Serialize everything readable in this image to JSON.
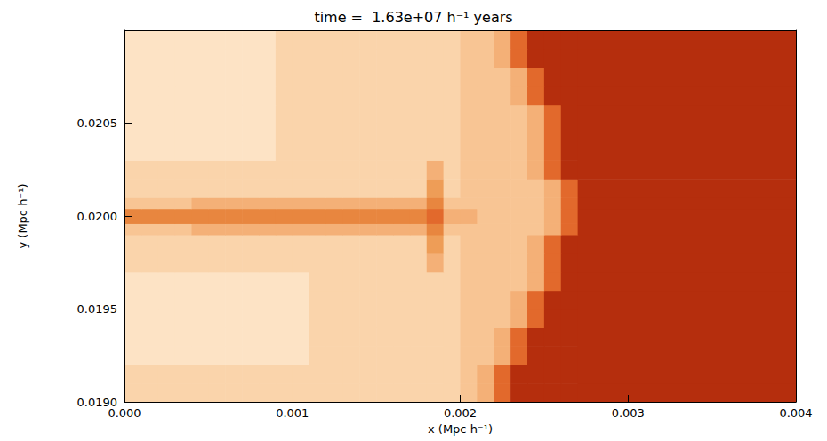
{
  "chart_data": {
    "type": "heatmap",
    "title": "time =  1.63e+07 h⁻¹ years",
    "x_label": "x (Mpc h⁻¹)",
    "y_label": "y (Mpc h⁻¹)",
    "xlim": [
      0,
      0.004
    ],
    "ylim": [
      0.019,
      0.021
    ],
    "xticks": [
      {
        "value": 0,
        "label": "0.000"
      },
      {
        "value": 0.001,
        "label": "0.001"
      },
      {
        "value": 0.002,
        "label": "0.002"
      },
      {
        "value": 0.003,
        "label": "0.003"
      },
      {
        "value": 0.004,
        "label": "0.004"
      }
    ],
    "yticks": [
      {
        "value": 0.019,
        "label": "0.0190"
      },
      {
        "value": 0.0195,
        "label": "0.0195"
      },
      {
        "value": 0.02,
        "label": "0.0200"
      },
      {
        "value": 0.0205,
        "label": "0.0205"
      }
    ],
    "grid": false,
    "value_range": [
      0,
      9
    ],
    "x_edges": [
      0,
      0.0001,
      0.0002,
      0.0003,
      0.0004,
      0.0005,
      0.0006,
      0.0007,
      0.0008,
      0.0009,
      0.001,
      0.0011,
      0.0012,
      0.0013,
      0.0014,
      0.0015,
      0.0016,
      0.0017,
      0.0018,
      0.0019,
      0.002,
      0.0021,
      0.0022,
      0.0023,
      0.0024,
      0.0025,
      0.0026,
      0.0027,
      0.004
    ],
    "y_edges": [
      0.019,
      0.0191,
      0.0192,
      0.0193,
      0.0194,
      0.0195,
      0.0196,
      0.0197,
      0.0198,
      0.0199,
      0.01996,
      0.02004,
      0.0201,
      0.0202,
      0.0203,
      0.0204,
      0.0205,
      0.0206,
      0.0207,
      0.0208,
      0.0209,
      0.021
    ],
    "cells": [
      [
        8,
        8,
        8,
        8,
        8,
        8,
        8,
        8,
        8,
        8,
        8,
        8,
        8,
        8,
        8,
        8,
        8,
        8,
        8,
        8,
        7,
        6,
        3,
        0,
        0,
        0,
        0,
        0
      ],
      [
        8,
        8,
        8,
        8,
        8,
        8,
        8,
        8,
        8,
        8,
        8,
        8,
        8,
        8,
        8,
        8,
        8,
        8,
        8,
        8,
        7,
        6,
        3,
        0,
        0,
        0,
        0,
        0
      ],
      [
        9,
        9,
        9,
        9,
        9,
        9,
        9,
        9,
        9,
        9,
        9,
        8,
        8,
        8,
        8,
        8,
        8,
        8,
        8,
        8,
        7,
        7,
        6,
        3,
        0,
        0,
        0,
        0
      ],
      [
        9,
        9,
        9,
        9,
        9,
        9,
        9,
        9,
        9,
        9,
        9,
        8,
        8,
        8,
        8,
        8,
        8,
        8,
        8,
        8,
        7,
        7,
        6,
        3,
        0,
        0,
        0,
        0
      ],
      [
        9,
        9,
        9,
        9,
        9,
        9,
        9,
        9,
        9,
        9,
        9,
        8,
        8,
        8,
        8,
        8,
        8,
        8,
        8,
        8,
        7,
        7,
        7,
        6,
        3,
        0,
        0,
        0
      ],
      [
        9,
        9,
        9,
        9,
        9,
        9,
        9,
        9,
        9,
        9,
        9,
        8,
        8,
        8,
        8,
        8,
        8,
        8,
        8,
        8,
        7,
        7,
        7,
        6,
        3,
        0,
        0,
        0
      ],
      [
        9,
        9,
        9,
        9,
        9,
        9,
        9,
        9,
        9,
        9,
        9,
        8,
        8,
        8,
        8,
        8,
        8,
        8,
        8,
        8,
        7,
        7,
        7,
        7,
        6,
        3,
        0,
        0
      ],
      [
        8,
        8,
        8,
        8,
        8,
        8,
        8,
        8,
        8,
        8,
        8,
        8,
        8,
        8,
        8,
        8,
        8,
        8,
        6,
        8,
        7,
        7,
        7,
        7,
        6,
        3,
        0,
        0
      ],
      [
        8,
        8,
        8,
        8,
        8,
        8,
        8,
        8,
        8,
        8,
        8,
        8,
        8,
        8,
        8,
        8,
        8,
        8,
        5,
        8,
        7,
        7,
        7,
        7,
        6,
        3,
        0,
        0
      ],
      [
        7,
        7,
        7,
        7,
        6,
        6,
        6,
        6,
        6,
        6,
        6,
        6,
        6,
        6,
        6,
        6,
        6,
        6,
        4,
        7,
        7,
        7,
        7,
        7,
        7,
        6,
        3,
        0
      ],
      [
        4,
        4,
        4,
        4,
        4,
        4,
        4,
        4,
        4,
        4,
        4,
        4,
        4,
        4,
        4,
        4,
        4,
        4,
        3,
        6,
        6,
        7,
        7,
        7,
        7,
        6,
        3,
        0
      ],
      [
        7,
        7,
        7,
        7,
        6,
        6,
        6,
        6,
        6,
        6,
        6,
        6,
        6,
        6,
        6,
        6,
        6,
        6,
        4,
        7,
        7,
        7,
        7,
        7,
        7,
        6,
        3,
        0
      ],
      [
        8,
        8,
        8,
        8,
        8,
        8,
        8,
        8,
        8,
        8,
        8,
        8,
        8,
        8,
        8,
        8,
        8,
        8,
        5,
        8,
        7,
        7,
        7,
        7,
        7,
        6,
        3,
        0
      ],
      [
        8,
        8,
        8,
        8,
        8,
        8,
        8,
        8,
        8,
        8,
        8,
        8,
        8,
        8,
        8,
        8,
        8,
        8,
        6,
        8,
        7,
        7,
        7,
        7,
        6,
        3,
        0,
        0
      ],
      [
        9,
        9,
        9,
        9,
        9,
        9,
        9,
        9,
        9,
        8,
        8,
        8,
        8,
        8,
        8,
        8,
        8,
        8,
        8,
        8,
        7,
        7,
        7,
        7,
        6,
        3,
        0,
        0
      ],
      [
        9,
        9,
        9,
        9,
        9,
        9,
        9,
        9,
        9,
        8,
        8,
        8,
        8,
        8,
        8,
        8,
        8,
        8,
        8,
        8,
        7,
        7,
        7,
        7,
        6,
        3,
        0,
        0
      ],
      [
        9,
        9,
        9,
        9,
        9,
        9,
        9,
        9,
        9,
        8,
        8,
        8,
        8,
        8,
        8,
        8,
        8,
        8,
        8,
        8,
        7,
        7,
        7,
        7,
        6,
        3,
        0,
        0
      ],
      [
        9,
        9,
        9,
        9,
        9,
        9,
        9,
        9,
        9,
        8,
        8,
        8,
        8,
        8,
        8,
        8,
        8,
        8,
        8,
        8,
        7,
        7,
        7,
        6,
        3,
        0,
        0,
        0
      ],
      [
        9,
        9,
        9,
        9,
        9,
        9,
        9,
        9,
        9,
        8,
        8,
        8,
        8,
        8,
        8,
        8,
        8,
        8,
        8,
        8,
        7,
        7,
        7,
        6,
        3,
        0,
        0,
        0
      ],
      [
        9,
        9,
        9,
        9,
        9,
        9,
        9,
        9,
        9,
        8,
        8,
        8,
        8,
        8,
        8,
        8,
        8,
        8,
        8,
        8,
        7,
        7,
        6,
        3,
        0,
        0,
        0,
        0
      ],
      [
        9,
        9,
        9,
        9,
        9,
        9,
        9,
        9,
        9,
        8,
        8,
        8,
        8,
        8,
        8,
        8,
        8,
        8,
        8,
        8,
        7,
        7,
        6,
        3,
        0,
        0,
        0,
        0
      ]
    ]
  }
}
